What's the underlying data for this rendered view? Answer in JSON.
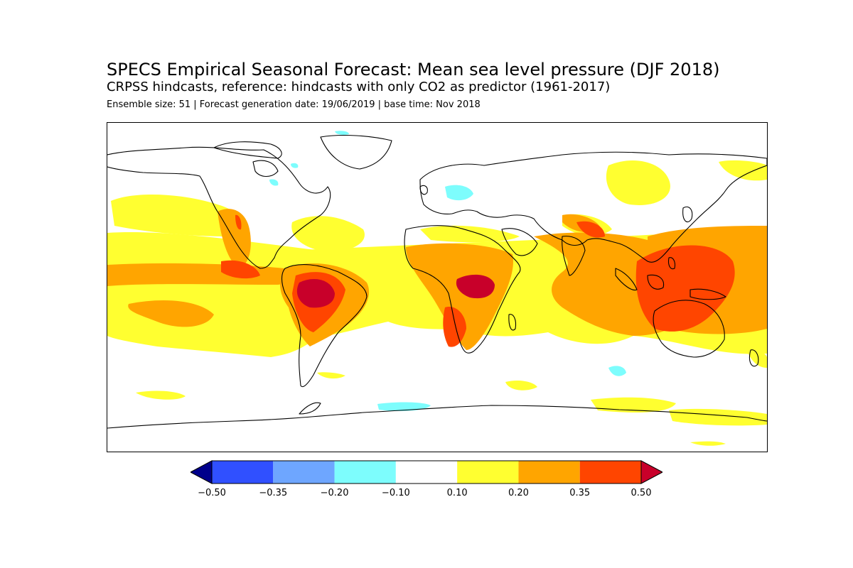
{
  "header": {
    "title": "SPECS Empirical Seasonal Forecast: Mean sea level pressure (DJF 2018)",
    "subtitle": "CRPSS hindcasts, reference: hindcasts with only CO2 as predictor (1961-2017)",
    "info": "Ensemble size: 51 | Forecast generation date: 19/06/2019 | base time: Nov 2018"
  },
  "map": {
    "projection": "equirectangular global",
    "coastline_color": "#000000",
    "background_color": "#ffffff"
  },
  "colorbar": {
    "extend": "both",
    "below_color": "#00008b",
    "above_color": "#c8002a",
    "bins": [
      {
        "from": -0.5,
        "to": -0.35,
        "color": "#3050ff"
      },
      {
        "from": -0.35,
        "to": -0.2,
        "color": "#6ea6ff"
      },
      {
        "from": -0.2,
        "to": -0.1,
        "color": "#7dfdfd"
      },
      {
        "from": -0.1,
        "to": 0.1,
        "color": "#ffffff"
      },
      {
        "from": 0.1,
        "to": 0.2,
        "color": "#ffff30"
      },
      {
        "from": 0.2,
        "to": 0.35,
        "color": "#ffa500"
      },
      {
        "from": 0.35,
        "to": 0.5,
        "color": "#ff4500"
      }
    ],
    "tick_labels": [
      "−0.50",
      "−0.35",
      "−0.20",
      "−0.10",
      "0.10",
      "0.20",
      "0.35",
      "0.50"
    ]
  }
}
